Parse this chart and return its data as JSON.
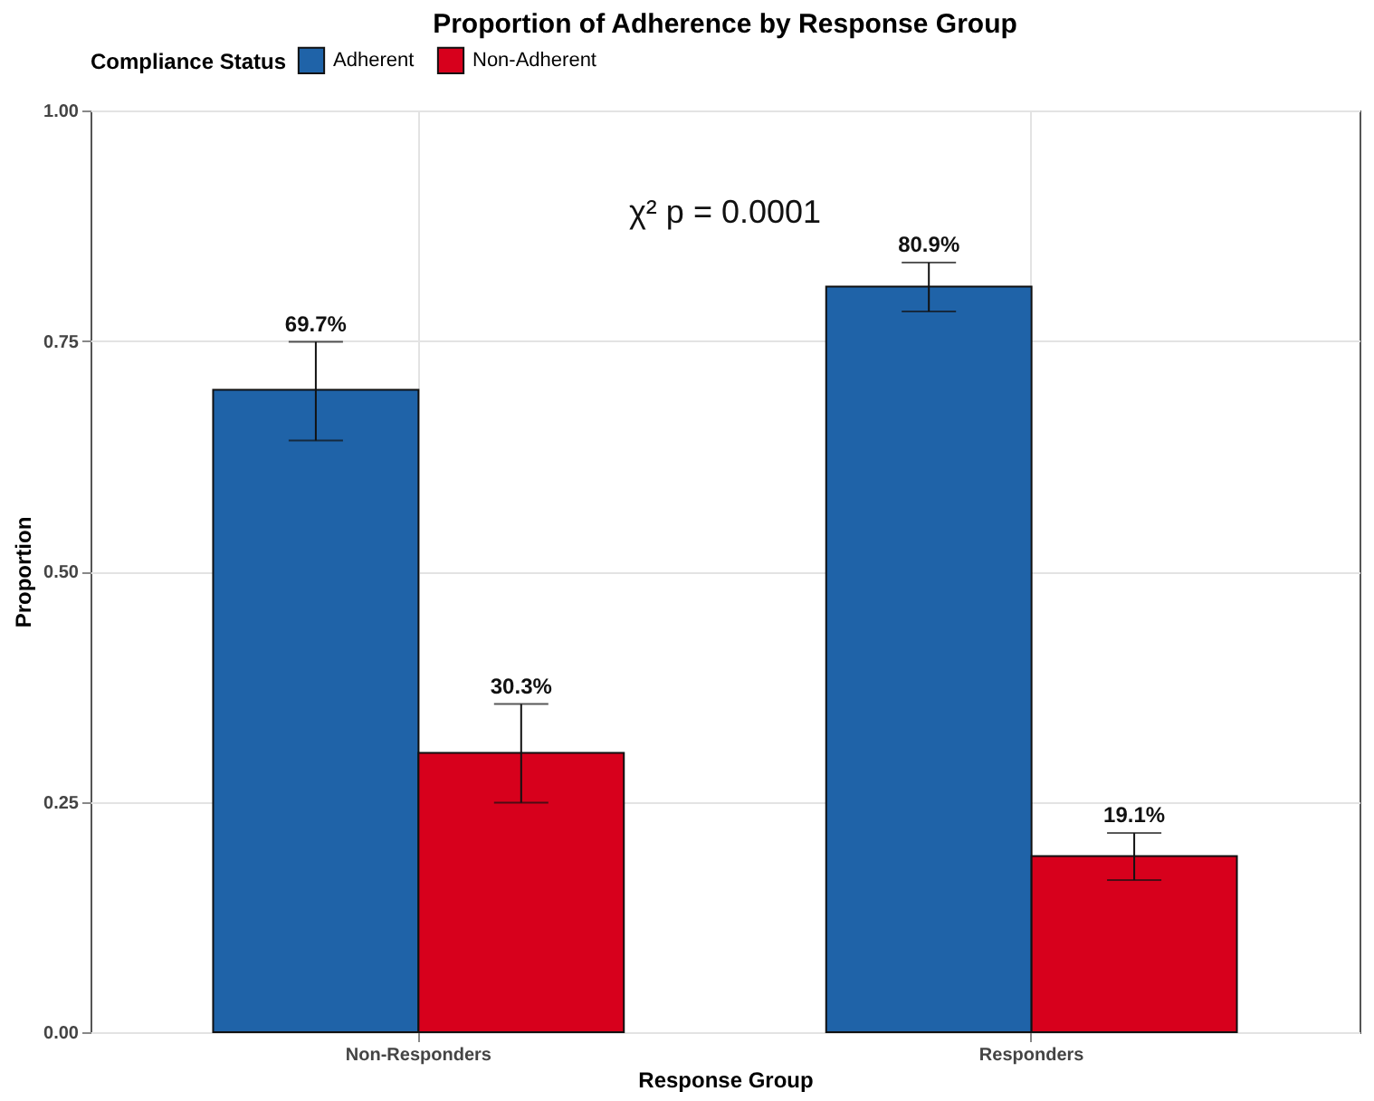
{
  "chart_data": {
    "type": "bar",
    "title": "Proportion of Adherence by Response Group",
    "xlabel": "Response Group",
    "ylabel": "Proportion",
    "legend_title": "Compliance Status",
    "categories": [
      "Non-Responders",
      "Responders"
    ],
    "series": [
      {
        "name": "Adherent",
        "color": "#1f63a8",
        "values": [
          0.697,
          0.809
        ],
        "errors": [
          [
            0.642,
            0.749
          ],
          [
            0.782,
            0.835
          ]
        ],
        "value_labels": [
          "69.7%",
          "80.9%"
        ]
      },
      {
        "name": "Non-Adherent",
        "color": "#d7001c",
        "values": [
          0.303,
          0.191
        ],
        "errors": [
          [
            0.249,
            0.356
          ],
          [
            0.165,
            0.216
          ]
        ],
        "value_labels": [
          "30.3%",
          "19.1%"
        ]
      }
    ],
    "ylim": [
      0,
      1
    ],
    "yticks": [
      {
        "value": 0,
        "label": "0.00"
      },
      {
        "value": 0.25,
        "label": "0.25"
      },
      {
        "value": 0.5,
        "label": "0.50"
      },
      {
        "value": 0.75,
        "label": "0.75"
      },
      {
        "value": 1,
        "label": "1.00"
      }
    ],
    "grid": true,
    "legend": "top",
    "annotations": [
      "χ² p = 0.0001"
    ]
  }
}
